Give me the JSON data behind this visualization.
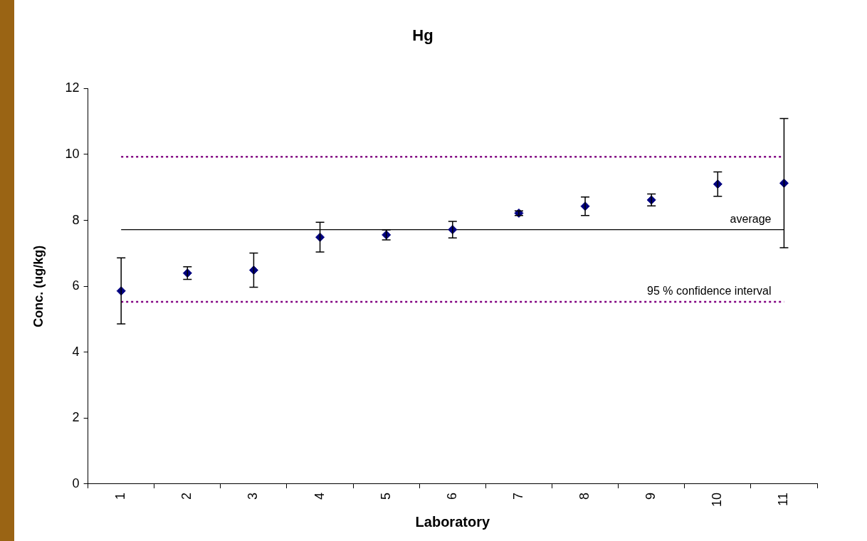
{
  "chart_data": {
    "type": "scatter",
    "title": "Hg",
    "xlabel": "Laboratory",
    "ylabel": "Conc. (ug/kg)",
    "categories": [
      "1",
      "2",
      "3",
      "4",
      "5",
      "6",
      "7",
      "8",
      "9",
      "10",
      "11"
    ],
    "series": [
      {
        "color": "#000080",
        "values": [
          5.86,
          6.4,
          6.49,
          7.49,
          7.56,
          7.72,
          8.22,
          8.43,
          8.62,
          9.1,
          9.13
        ],
        "errors": [
          1.0,
          0.19,
          0.52,
          0.45,
          0.15,
          0.25,
          0.07,
          0.28,
          0.18,
          0.37,
          1.96
        ]
      }
    ],
    "ylim": [
      0,
      12
    ],
    "yticks": [
      0,
      2,
      4,
      6,
      8,
      10,
      12
    ],
    "grid": false,
    "legend": false,
    "marker": "diamond",
    "ref_lines": [
      {
        "axis": "y",
        "value": 7.72,
        "label": "average",
        "color": "#000000",
        "line_style": "solid"
      },
      {
        "axis": "y",
        "value": 9.93,
        "label": null,
        "color": "#800080",
        "line_style": "dotted"
      },
      {
        "axis": "y",
        "value": 5.53,
        "label": "95 % confidence interval",
        "color": "#800080",
        "line_style": "dotted"
      }
    ]
  }
}
